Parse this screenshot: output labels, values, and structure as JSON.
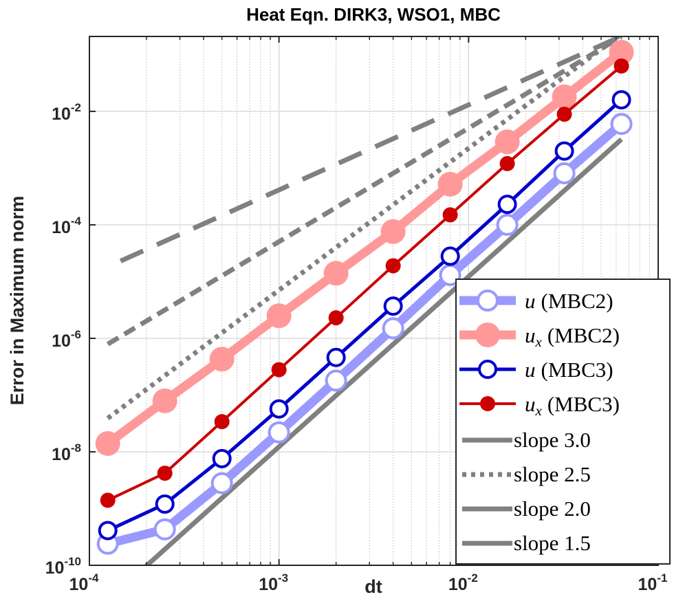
{
  "chart_data": {
    "type": "line",
    "title": "Heat Eqn. DIRK3, WSO1, MBC",
    "xlabel": "dt",
    "ylabel": "Error in Maximum norm",
    "xscale": "log",
    "yscale": "log",
    "xlim": [
      0.0001,
      0.1
    ],
    "ylim": [
      1e-10,
      0.2
    ],
    "xticks": [
      {
        "base": "10",
        "exp": "-4"
      },
      {
        "base": "10",
        "exp": "-3"
      },
      {
        "base": "10",
        "exp": "-2"
      },
      {
        "base": "10",
        "exp": "-1"
      }
    ],
    "yticks": [
      {
        "base": "10",
        "exp": "-10"
      },
      {
        "base": "10",
        "exp": "-8"
      },
      {
        "base": "10",
        "exp": "-6"
      },
      {
        "base": "10",
        "exp": "-4"
      },
      {
        "base": "10",
        "exp": "-2"
      }
    ],
    "grid": "major y, minor x (dotted)",
    "legend_placement": "bottom-right",
    "x": [
      0.000125,
      0.00025,
      0.0005,
      0.001,
      0.002,
      0.004,
      0.008,
      0.016,
      0.032,
      0.064
    ],
    "series": [
      {
        "name": "u (MBC2)",
        "var": "u",
        "sub": "",
        "tag": "(MBC2)",
        "color": "#9999ff",
        "marker": "open-circle",
        "values": [
          2.4e-10,
          4.3e-10,
          2.8e-09,
          2.2e-08,
          1.8e-07,
          1.5e-06,
          1.3e-05,
          0.0001,
          0.00081,
          0.006
        ]
      },
      {
        "name": "u_x (MBC2)",
        "var": "u",
        "sub": "x",
        "tag": "(MBC2)",
        "color": "#ff9999",
        "marker": "filled-circle",
        "values": [
          1.4e-08,
          7.9e-08,
          4.3e-07,
          2.5e-06,
          1.4e-05,
          7.6e-05,
          0.00052,
          0.0029,
          0.018,
          0.11
        ]
      },
      {
        "name": "u (MBC3)",
        "var": "u",
        "sub": "",
        "tag": "(MBC3)",
        "color": "#0000cc",
        "marker": "open-circle",
        "values": [
          4.1e-10,
          1.2e-09,
          7.6e-09,
          5.7e-08,
          4.6e-07,
          3.7e-06,
          2.8e-05,
          0.00023,
          0.002,
          0.016
        ]
      },
      {
        "name": "u_x (MBC3)",
        "var": "u",
        "sub": "x",
        "tag": "(MBC3)",
        "color": "#cc0000",
        "marker": "filled-circle",
        "values": [
          1.4e-09,
          4.2e-09,
          3.4e-08,
          2.8e-07,
          2.3e-06,
          1.9e-05,
          0.00015,
          0.0012,
          0.0089,
          0.063
        ]
      }
    ],
    "reference_lines": [
      {
        "name": "slope 3.0",
        "slope": 3.0,
        "style": "solid",
        "color": "#808080",
        "x_start": 0.000195,
        "y_start": 9.1e-11,
        "x_end": 0.064
      },
      {
        "name": "slope 2.5",
        "slope": 2.5,
        "style": "dotted",
        "color": "#808080",
        "x_start": 0.000125,
        "y_start": 3.9e-08,
        "x_end": 0.064
      },
      {
        "name": "slope 2.0",
        "slope": 2.0,
        "style": "dashed",
        "color": "#808080",
        "x_start": 0.000125,
        "y_start": 7.9e-07,
        "x_end": 0.064
      },
      {
        "name": "slope 1.5",
        "slope": 1.5,
        "style": "long-dashed",
        "color": "#808080",
        "x_start": 0.000146,
        "y_start": 2.3e-05,
        "x_end": 0.064
      }
    ]
  }
}
